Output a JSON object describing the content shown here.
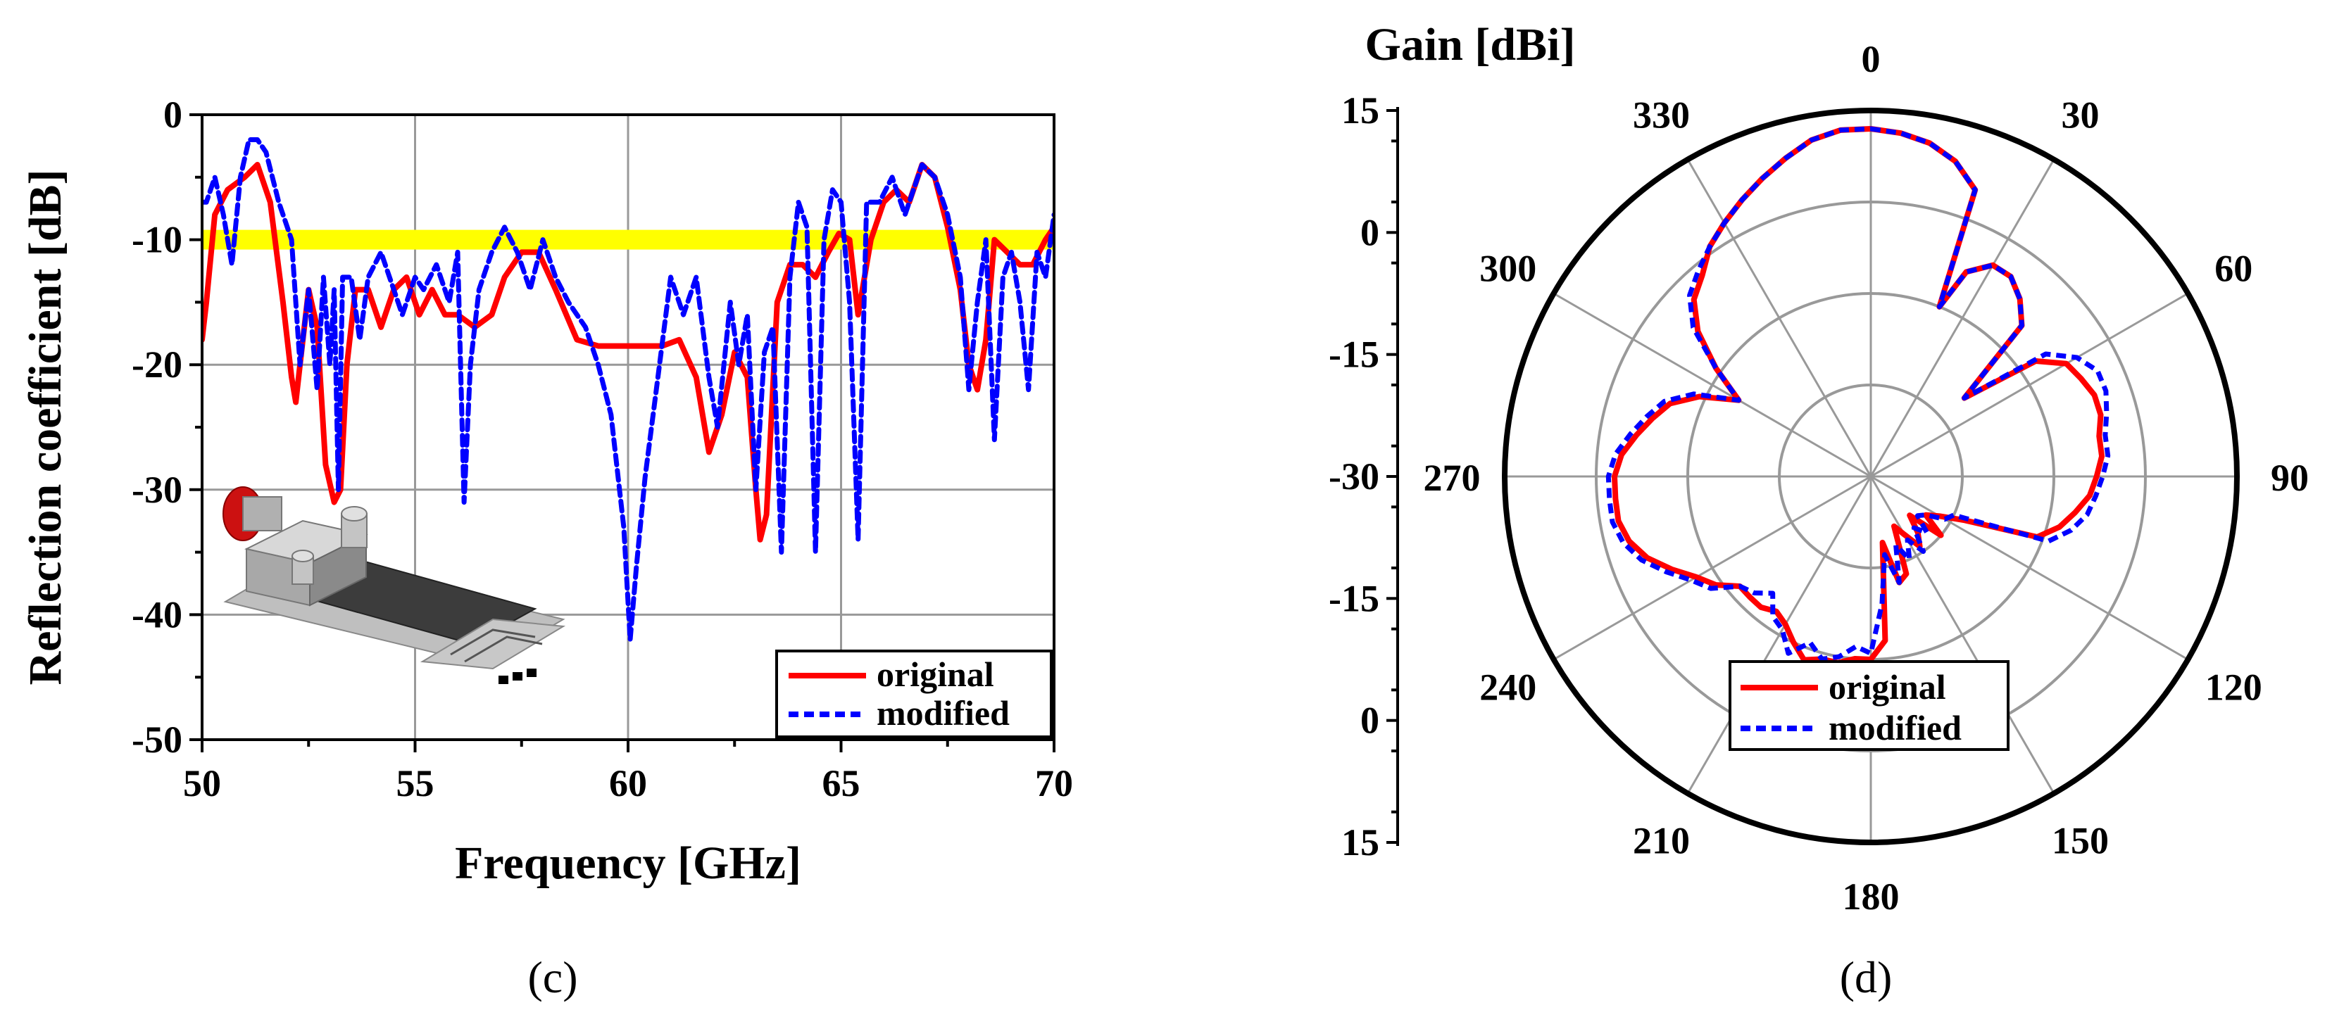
{
  "chart_data": [
    {
      "id": "c",
      "type": "line",
      "caption": "(c)",
      "xlabel": "Frequency [GHz]",
      "ylabel": "Reflection coefficient [dB]",
      "xlim": [
        50,
        70
      ],
      "ylim": [
        -50,
        0
      ],
      "xticks": [
        50,
        55,
        60,
        65,
        70
      ],
      "yticks": [
        0,
        -10,
        -20,
        -30,
        -40,
        -50
      ],
      "grid": true,
      "highlight_band": {
        "y": -10,
        "color": "#ffff00"
      },
      "legend": {
        "placement": "bottom-right"
      },
      "series": [
        {
          "name": "original",
          "color": "#ff0000",
          "style": "solid",
          "x": [
            50.0,
            50.1,
            50.3,
            50.6,
            51.0,
            51.3,
            51.6,
            51.9,
            52.1,
            52.2,
            52.3,
            52.5,
            52.7,
            52.9,
            53.1,
            53.25,
            53.4,
            53.6,
            53.9,
            54.2,
            54.5,
            54.8,
            55.1,
            55.4,
            55.7,
            56.0,
            56.4,
            56.8,
            57.1,
            57.5,
            57.9,
            58.3,
            58.8,
            59.3,
            59.8,
            60.3,
            60.8,
            61.2,
            61.6,
            61.9,
            62.2,
            62.5,
            62.8,
            63.0,
            63.1,
            63.25,
            63.5,
            63.8,
            64.1,
            64.4,
            64.7,
            64.95,
            65.2,
            65.4,
            65.7,
            66.0,
            66.3,
            66.6,
            66.9,
            67.2,
            67.5,
            67.8,
            68.0,
            68.2,
            68.4,
            68.6,
            68.9,
            69.2,
            69.5,
            69.8,
            70.0
          ],
          "y": [
            -18,
            -15,
            -8,
            -6,
            -5,
            -4,
            -7,
            -15,
            -21,
            -23,
            -20,
            -14,
            -17,
            -28,
            -31,
            -30,
            -20,
            -14,
            -14,
            -17,
            -14,
            -13,
            -16,
            -14,
            -16,
            -16,
            -17,
            -16,
            -13,
            -11,
            -11,
            -14,
            -18,
            -18.5,
            -18.5,
            -18.5,
            -18.5,
            -18,
            -21,
            -27,
            -24,
            -19,
            -21,
            -30,
            -34,
            -32,
            -15,
            -12,
            -12,
            -13,
            -11,
            -9.5,
            -10,
            -16,
            -10,
            -7,
            -6,
            -7,
            -4,
            -5,
            -9,
            -14,
            -20,
            -22,
            -18,
            -10,
            -11,
            -12,
            -12,
            -10,
            -9
          ]
        },
        {
          "name": "modified",
          "color": "#0000ff",
          "style": "dashed",
          "x": [
            50.0,
            50.1,
            50.3,
            50.5,
            50.7,
            50.9,
            51.1,
            51.3,
            51.5,
            51.8,
            52.1,
            52.3,
            52.5,
            52.7,
            52.85,
            53.0,
            53.1,
            53.2,
            53.3,
            53.5,
            53.7,
            53.9,
            54.2,
            54.5,
            54.7,
            55.0,
            55.2,
            55.5,
            55.8,
            56.0,
            56.15,
            56.3,
            56.5,
            56.8,
            57.1,
            57.4,
            57.7,
            58.0,
            58.3,
            58.6,
            59.0,
            59.3,
            59.6,
            59.9,
            60.05,
            60.2,
            60.4,
            60.7,
            61.0,
            61.3,
            61.6,
            61.9,
            62.1,
            62.4,
            62.6,
            62.8,
            63.0,
            63.2,
            63.4,
            63.6,
            63.8,
            64.0,
            64.2,
            64.4,
            64.6,
            64.8,
            65.0,
            65.2,
            65.4,
            65.6,
            65.9,
            66.2,
            66.5,
            66.9,
            67.2,
            67.5,
            67.8,
            68.0,
            68.2,
            68.4,
            68.6,
            68.8,
            69.0,
            69.2,
            69.4,
            69.6,
            69.8,
            70.0
          ],
          "y": [
            -7,
            -7,
            -5,
            -8,
            -12,
            -5,
            -2,
            -2,
            -3,
            -7,
            -10,
            -20,
            -14,
            -22,
            -13,
            -20,
            -14,
            -30,
            -13,
            -13,
            -18,
            -13,
            -11,
            -14,
            -16,
            -13,
            -14,
            -12,
            -15,
            -11,
            -31,
            -20,
            -14,
            -11,
            -9,
            -11,
            -14,
            -10,
            -13,
            -15,
            -17,
            -20,
            -24,
            -33,
            -42,
            -36,
            -29,
            -21,
            -13,
            -16,
            -13,
            -21,
            -25,
            -15,
            -20,
            -16,
            -30,
            -19,
            -17,
            -35,
            -13,
            -7,
            -9,
            -35,
            -10,
            -6,
            -7,
            -15,
            -34,
            -7,
            -7,
            -5,
            -8,
            -4,
            -5,
            -8,
            -13,
            -22,
            -15,
            -10,
            -26,
            -13,
            -11,
            -15,
            -22,
            -11,
            -13,
            -8
          ]
        }
      ]
    },
    {
      "id": "d",
      "type": "polar",
      "caption": "(d)",
      "rlabel": "Gain [dBi]",
      "rlim": [
        -45,
        15
      ],
      "rticks": [
        15,
        0,
        -15,
        -30,
        -15,
        0,
        15
      ],
      "angle_ticks": [
        0,
        30,
        60,
        90,
        120,
        150,
        180,
        210,
        240,
        270,
        300,
        330
      ],
      "grid": true,
      "legend": {
        "placement": "bottom-center"
      },
      "series": [
        {
          "name": "original",
          "color": "#ff0000",
          "style": "solid",
          "theta": [
            0,
            5,
            10,
            15,
            20,
            22,
            25,
            30,
            35,
            40,
            45,
            50,
            55,
            60,
            65,
            70,
            75,
            80,
            85,
            90,
            95,
            100,
            105,
            110,
            115,
            120,
            125,
            130,
            135,
            140,
            145,
            150,
            155,
            160,
            165,
            170,
            175,
            180,
            185,
            190,
            195,
            200,
            205,
            210,
            215,
            220,
            225,
            230,
            235,
            240,
            245,
            250,
            255,
            260,
            265,
            270,
            275,
            280,
            285,
            290,
            295,
            300,
            305,
            310,
            315,
            320,
            325,
            330,
            335,
            340,
            345,
            350,
            355,
            360
          ],
          "r": [
            12,
            11.5,
            10.5,
            8.5,
            5,
            -15,
            -8,
            -5,
            -5,
            -7,
            -10,
            -25,
            -12,
            -8,
            -7,
            -6,
            -6,
            -7,
            -7,
            -8,
            -9,
            -11,
            -13,
            -16,
            -28,
            -32,
            -34,
            -30,
            -36,
            -33,
            -31,
            -34,
            -36,
            -28,
            -27,
            -34,
            -18,
            -15,
            -15,
            -14,
            -14,
            -13,
            -15,
            -17,
            -18,
            -17,
            -17,
            -17,
            -14,
            -12,
            -9,
            -6,
            -4,
            -3,
            -3,
            -3,
            -4,
            -6,
            -8,
            -10,
            -14,
            -20,
            -14,
            -8,
            -4,
            -2,
            1,
            3,
            5,
            7,
            9,
            11,
            12,
            12
          ]
        },
        {
          "name": "modified",
          "color": "#0000ff",
          "style": "dashed",
          "theta": [
            0,
            5,
            10,
            15,
            20,
            22,
            25,
            30,
            35,
            40,
            45,
            50,
            55,
            60,
            65,
            70,
            75,
            80,
            85,
            90,
            95,
            100,
            105,
            110,
            115,
            120,
            125,
            130,
            135,
            140,
            145,
            150,
            155,
            160,
            165,
            170,
            175,
            180,
            185,
            190,
            195,
            200,
            205,
            210,
            215,
            220,
            225,
            230,
            235,
            240,
            245,
            250,
            255,
            260,
            265,
            270,
            275,
            280,
            285,
            290,
            295,
            300,
            305,
            310,
            315,
            320,
            325,
            330,
            335,
            340,
            345,
            350,
            355,
            360
          ],
          "r": [
            12,
            11.5,
            10.5,
            8.5,
            5,
            -15,
            -8,
            -5,
            -5,
            -7,
            -10,
            -25,
            -10,
            -6,
            -4,
            -4,
            -5,
            -6,
            -6,
            -7,
            -8,
            -9,
            -11,
            -14,
            -30,
            -31,
            -34,
            -35,
            -32,
            -34,
            -30,
            -33,
            -30,
            -33,
            -27,
            -32,
            -24,
            -16,
            -17,
            -15,
            -14,
            -16,
            -13,
            -16,
            -17,
            -20,
            -18,
            -17,
            -13,
            -11,
            -8,
            -5,
            -3,
            -2,
            -2,
            -2,
            -3,
            -5,
            -7,
            -9,
            -13,
            -20,
            -14,
            -7,
            -3,
            -1,
            1,
            3,
            5,
            7,
            9,
            11,
            12,
            12
          ]
        }
      ]
    }
  ]
}
